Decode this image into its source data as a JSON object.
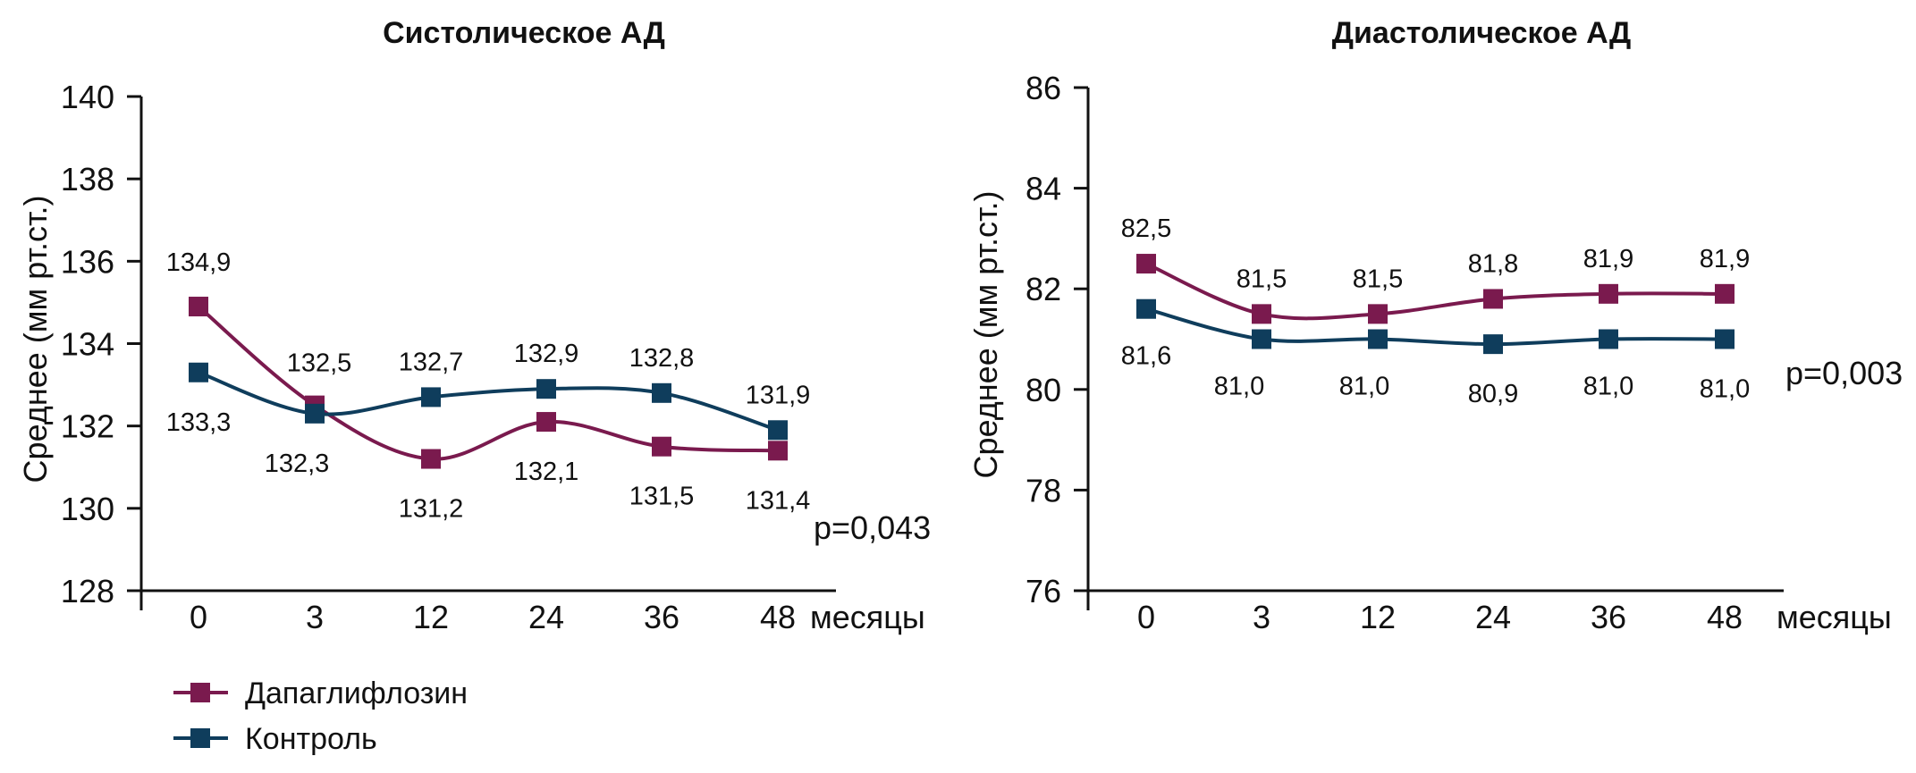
{
  "colors": {
    "dapagliflozin": "#7a1a4e",
    "control": "#0f3d5c",
    "axis": "#111111"
  },
  "legend": [
    {
      "label": "Дапаглифлозин",
      "color": "#7a1a4e",
      "icon": "square-marker-line"
    },
    {
      "label": "Контроль",
      "color": "#0f3d5c",
      "icon": "square-marker-line"
    }
  ],
  "chart_data": [
    {
      "type": "line",
      "title": "Систолическое АД",
      "ylabel": "Среднее (мм рт.ст.)",
      "xlabel": "месяцы",
      "categories": [
        "0",
        "3",
        "12",
        "24",
        "36",
        "48"
      ],
      "ylim": [
        128,
        140
      ],
      "yticks": [
        "128",
        "130",
        "132",
        "134",
        "136",
        "138",
        "140"
      ],
      "annotation": "p=0,043",
      "series": [
        {
          "name": "Дапаглифлозин",
          "values": [
            134.9,
            132.5,
            131.2,
            132.1,
            131.5,
            131.4
          ],
          "labels": [
            "134,9",
            "132,5",
            "131,2",
            "132,1",
            "131,5",
            "131,4"
          ]
        },
        {
          "name": "Контроль",
          "values": [
            133.3,
            132.3,
            132.7,
            132.9,
            132.8,
            131.9
          ],
          "labels": [
            "133,3",
            "132,3",
            "132,7",
            "132,9",
            "132,8",
            "131,9"
          ]
        }
      ]
    },
    {
      "type": "line",
      "title": "Диастолическое АД",
      "ylabel": "Среднее (мм рт.ст.)",
      "xlabel": "месяцы",
      "categories": [
        "0",
        "3",
        "12",
        "24",
        "36",
        "48"
      ],
      "ylim": [
        76,
        86
      ],
      "yticks": [
        "76",
        "78",
        "80",
        "82",
        "84",
        "86"
      ],
      "annotation": "p=0,003",
      "series": [
        {
          "name": "Дапаглифлозин",
          "values": [
            82.5,
            81.5,
            81.5,
            81.8,
            81.9,
            81.9
          ],
          "labels": [
            "82,5",
            "81,5",
            "81,5",
            "81,8",
            "81,9",
            "81,9"
          ]
        },
        {
          "name": "Контроль",
          "values": [
            81.6,
            81.0,
            81.0,
            80.9,
            81.0,
            81.0
          ],
          "labels": [
            "81,6",
            "81,0",
            "81,0",
            "80,9",
            "81,0",
            "81,0"
          ]
        }
      ]
    }
  ]
}
